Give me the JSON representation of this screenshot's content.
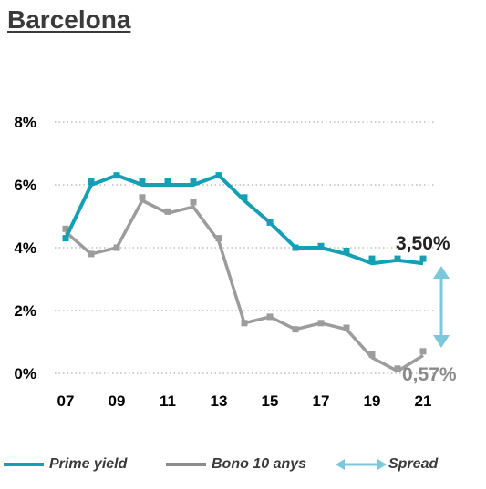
{
  "title": "Barcelona",
  "colors": {
    "prime": "#13a0b4",
    "bono": "#9c9c9c",
    "spread": "#7cc7dc",
    "grid": "#b0b0b0"
  },
  "chart_data": {
    "type": "line",
    "title": "Barcelona",
    "xlabel": "",
    "ylabel": "",
    "ylim": [
      0,
      8
    ],
    "y_ticks": [
      "0%",
      "2%",
      "4%",
      "6%",
      "8%"
    ],
    "y_tick_values": [
      0,
      2,
      4,
      6,
      8
    ],
    "x_tick_labels": [
      "07",
      "09",
      "11",
      "13",
      "15",
      "17",
      "19",
      "21"
    ],
    "x": [
      7,
      8,
      9,
      10,
      11,
      12,
      13,
      14,
      15,
      16,
      17,
      18,
      19,
      20,
      21
    ],
    "x_tick_values": [
      7,
      9,
      11,
      13,
      15,
      17,
      19,
      21
    ],
    "grid": "horizontal dotted",
    "legend_position": "bottom",
    "series": [
      {
        "name": "Prime yield",
        "values": [
          4.3,
          6.0,
          6.3,
          6.0,
          6.0,
          6.0,
          6.3,
          5.5,
          4.8,
          4.0,
          4.0,
          3.8,
          3.5,
          3.6,
          3.5
        ],
        "markers": [
          4.3,
          6.1,
          6.3,
          6.1,
          6.1,
          6.1,
          6.3,
          5.6,
          4.8,
          4.0,
          4.05,
          3.9,
          3.65,
          3.65,
          3.65
        ]
      },
      {
        "name": "Bono 10 anys",
        "values": [
          4.5,
          3.8,
          4.0,
          5.5,
          5.1,
          5.3,
          4.2,
          1.6,
          1.8,
          1.4,
          1.6,
          1.4,
          0.5,
          0.07,
          0.57
        ],
        "markers": [
          4.6,
          3.8,
          4.0,
          5.6,
          5.15,
          5.45,
          4.3,
          1.6,
          1.8,
          1.4,
          1.6,
          1.45,
          0.6,
          0.15,
          0.7
        ]
      }
    ],
    "annotations": [
      {
        "text": "3,50%",
        "series": "Prime yield"
      },
      {
        "text": "0,57%",
        "series": "Bono 10 anys"
      }
    ],
    "legend": [
      "Prime yield",
      "Bono 10 anys",
      "Spread"
    ]
  },
  "legend": {
    "prime": "Prime yield",
    "bono": "Bono 10 anys",
    "spread": "Spread"
  }
}
